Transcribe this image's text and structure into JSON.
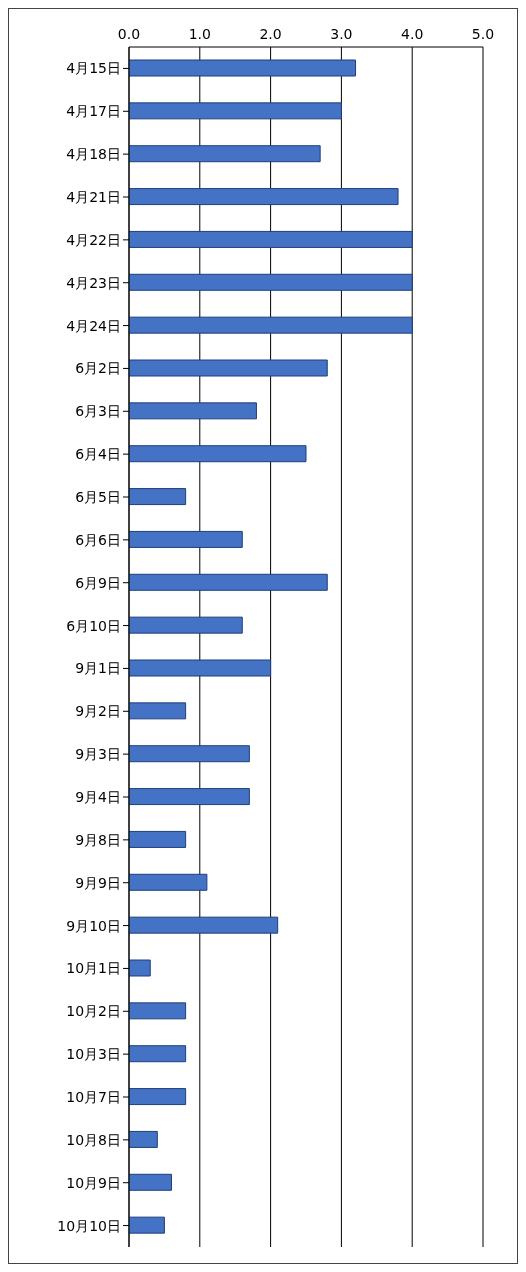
{
  "chart_data": {
    "type": "bar",
    "orientation": "horizontal",
    "categories": [
      "4月15日",
      "4月17日",
      "4月18日",
      "4月21日",
      "4月22日",
      "4月23日",
      "4月24日",
      "6月2日",
      "6月3日",
      "6月4日",
      "6月5日",
      "6月6日",
      "6月9日",
      "6月10日",
      "9月1日",
      "9月2日",
      "9月3日",
      "9月4日",
      "9月8日",
      "9月9日",
      "9月10日",
      "10月1日",
      "10月2日",
      "10月3日",
      "10月7日",
      "10月8日",
      "10月9日",
      "10月10日"
    ],
    "values": [
      3.2,
      3.0,
      2.7,
      3.8,
      4.0,
      4.0,
      4.0,
      2.8,
      1.8,
      2.5,
      0.8,
      1.6,
      2.8,
      1.6,
      2.0,
      0.8,
      1.7,
      1.7,
      0.8,
      1.1,
      2.1,
      0.3,
      0.8,
      0.8,
      0.8,
      0.4,
      0.6,
      0.5
    ],
    "color": "#4472c4",
    "xlim": [
      0,
      5
    ],
    "xticks": [
      {
        "value": 0,
        "label": "0.0"
      },
      {
        "value": 1,
        "label": "1.0"
      },
      {
        "value": 2,
        "label": "2.0"
      },
      {
        "value": 3,
        "label": "3.0"
      },
      {
        "value": 4,
        "label": "4.0"
      },
      {
        "value": 5,
        "label": "5.0"
      }
    ],
    "grid": "x",
    "legend": false
  }
}
